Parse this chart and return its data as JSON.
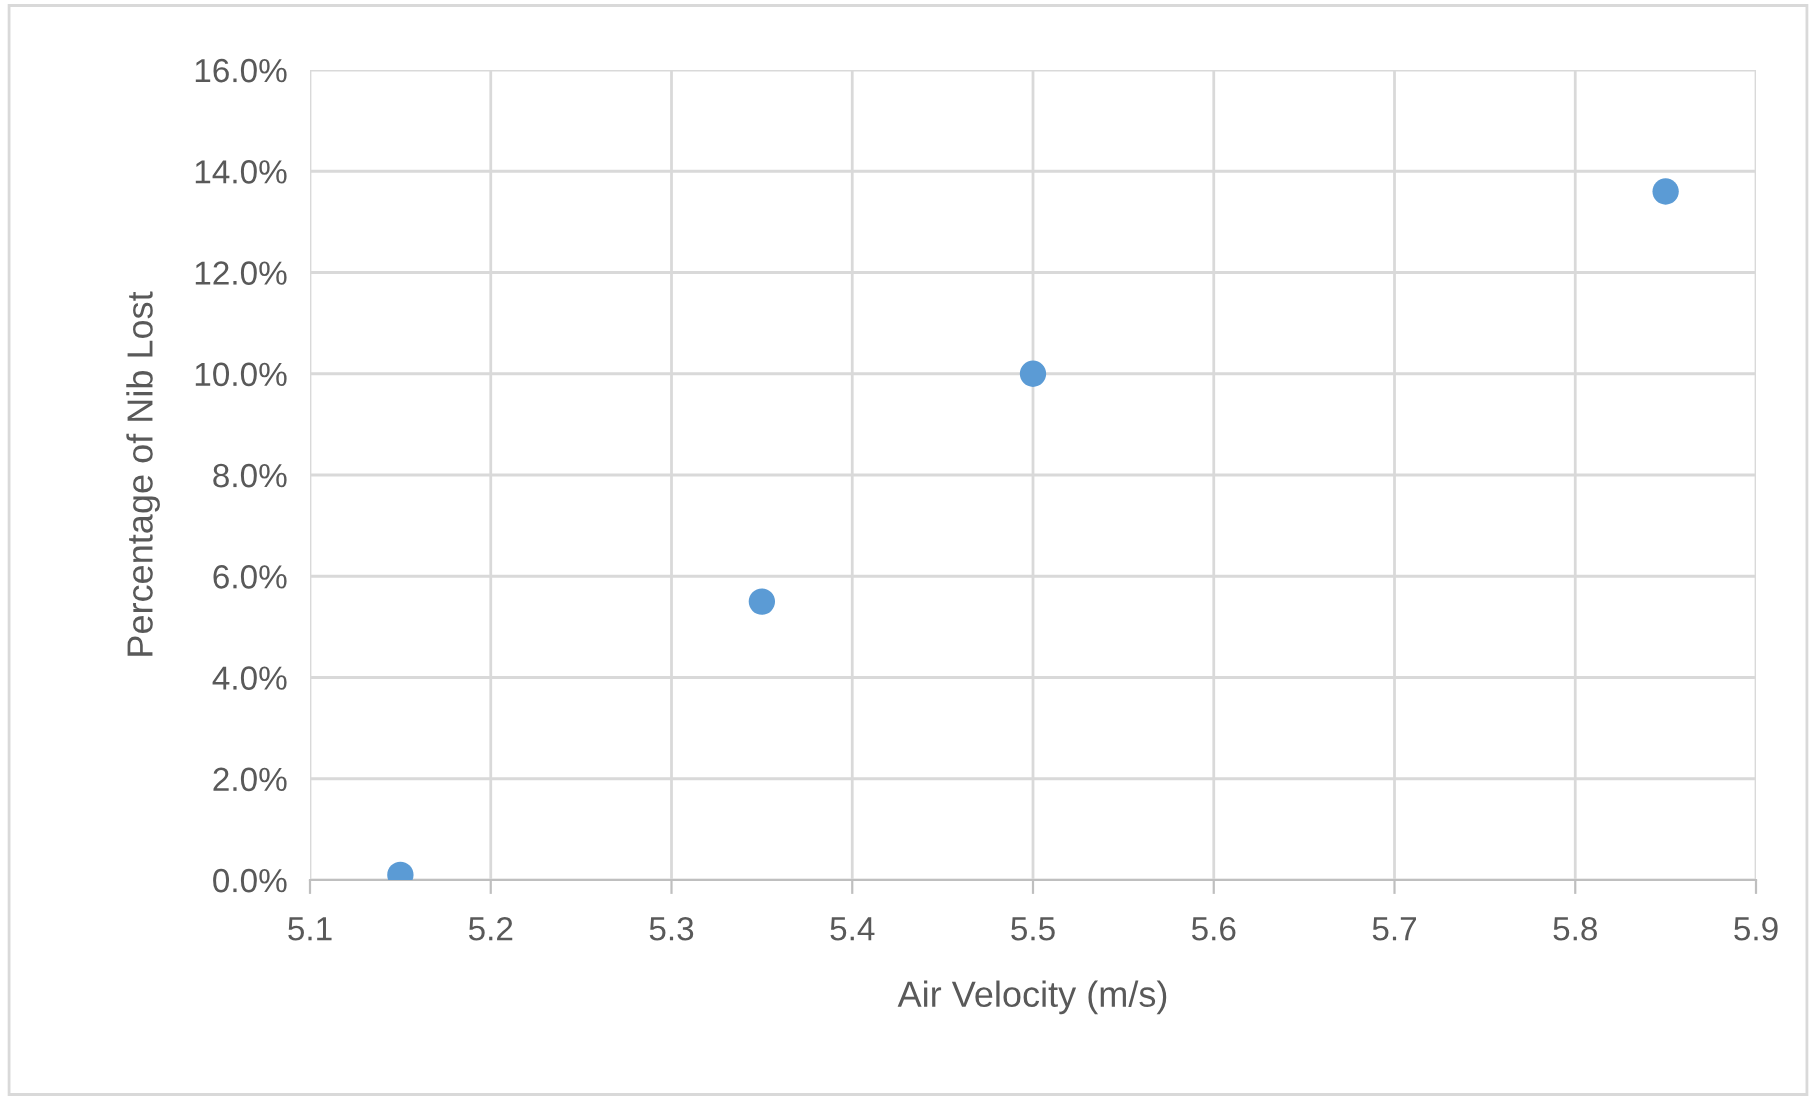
{
  "chart_data": {
    "type": "scatter",
    "xlabel": "Air Velocity (m/s)",
    "ylabel": "Percentage of Nib Lost",
    "x": [
      5.15,
      5.35,
      5.5,
      5.85
    ],
    "series": [
      {
        "color": "#5b9bd5",
        "values": [
          0.1,
          5.5,
          10.0,
          13.6
        ]
      }
    ],
    "xlim": [
      5.1,
      5.9
    ],
    "xticks": [
      5.1,
      5.2,
      5.3,
      5.4,
      5.5,
      5.6,
      5.7,
      5.8,
      5.9
    ],
    "ylim": [
      0,
      16
    ],
    "yticks": [
      {
        "value": 0,
        "label": "0.0%"
      },
      {
        "value": 2,
        "label": "2.0%"
      },
      {
        "value": 4,
        "label": "4.0%"
      },
      {
        "value": 6,
        "label": "6.0%"
      },
      {
        "value": 8,
        "label": "8.0%"
      },
      {
        "value": 10,
        "label": "10.0%"
      },
      {
        "value": 12,
        "label": "12.0%"
      },
      {
        "value": 14,
        "label": "14.0%"
      },
      {
        "value": 16,
        "label": "16.0%"
      }
    ],
    "grid": true,
    "marker": "circle"
  }
}
